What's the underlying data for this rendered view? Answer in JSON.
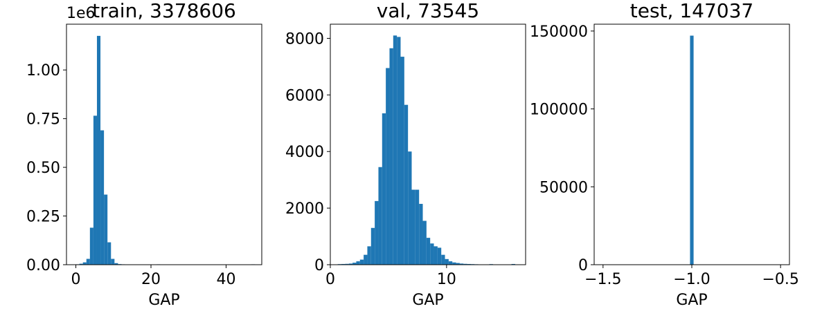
{
  "chart_data": [
    {
      "type": "histogram",
      "title": "train, 3378606",
      "xlabel": "GAP",
      "ylabel": "",
      "xlim": [
        -2.5,
        49.5
      ],
      "ylim": [
        0,
        1235000
      ],
      "xticks": [
        0,
        20,
        40
      ],
      "xtick_labels": [
        "0",
        "20",
        "40"
      ],
      "yticks": [
        0,
        250000,
        500000,
        750000,
        1000000
      ],
      "ytick_labels": [
        "0.00",
        "0.25",
        "0.50",
        "0.75",
        "1.00"
      ],
      "y_offset_label": "1e6",
      "color": "#1f77b4",
      "bin_width": 0.935,
      "bins": [
        {
          "x": 0.0,
          "count": 2000
        },
        {
          "x": 0.935,
          "count": 5000
        },
        {
          "x": 1.87,
          "count": 12000
        },
        {
          "x": 2.805,
          "count": 30000
        },
        {
          "x": 3.74,
          "count": 190000
        },
        {
          "x": 4.675,
          "count": 765000
        },
        {
          "x": 5.61,
          "count": 1175000
        },
        {
          "x": 6.545,
          "count": 690000
        },
        {
          "x": 7.48,
          "count": 360000
        },
        {
          "x": 8.415,
          "count": 115000
        },
        {
          "x": 9.35,
          "count": 30000
        },
        {
          "x": 10.285,
          "count": 8000
        },
        {
          "x": 11.22,
          "count": 3000
        },
        {
          "x": 12.155,
          "count": 2000
        },
        {
          "x": 13.09,
          "count": 1500
        },
        {
          "x": 14.025,
          "count": 1000
        },
        {
          "x": 16.83,
          "count": 1000
        },
        {
          "x": 21.505,
          "count": 2000
        },
        {
          "x": 46.75,
          "count": 2000
        }
      ]
    },
    {
      "type": "histogram",
      "title": "val, 73545",
      "xlabel": "GAP",
      "ylabel": "",
      "xlim": [
        0,
        16.8
      ],
      "ylim": [
        0,
        8500
      ],
      "xticks": [
        0,
        10
      ],
      "xtick_labels": [
        "0",
        "10"
      ],
      "yticks": [
        0,
        2000,
        4000,
        6000,
        8000
      ],
      "ytick_labels": [
        "0",
        "2000",
        "4000",
        "6000",
        "8000"
      ],
      "color": "#1f77b4",
      "bin_width": 0.318,
      "bins": [
        {
          "x": 0.64,
          "count": 20
        },
        {
          "x": 0.958,
          "count": 25
        },
        {
          "x": 1.276,
          "count": 30
        },
        {
          "x": 1.594,
          "count": 40
        },
        {
          "x": 1.912,
          "count": 70
        },
        {
          "x": 2.23,
          "count": 120
        },
        {
          "x": 2.548,
          "count": 180
        },
        {
          "x": 2.866,
          "count": 350
        },
        {
          "x": 3.184,
          "count": 650
        },
        {
          "x": 3.502,
          "count": 1300
        },
        {
          "x": 3.82,
          "count": 2250
        },
        {
          "x": 4.138,
          "count": 3450
        },
        {
          "x": 4.456,
          "count": 5350
        },
        {
          "x": 4.774,
          "count": 6950
        },
        {
          "x": 5.092,
          "count": 7650
        },
        {
          "x": 5.41,
          "count": 8100
        },
        {
          "x": 5.728,
          "count": 8050
        },
        {
          "x": 6.046,
          "count": 7350
        },
        {
          "x": 6.364,
          "count": 5650
        },
        {
          "x": 6.682,
          "count": 4000
        },
        {
          "x": 7.0,
          "count": 2650
        },
        {
          "x": 7.318,
          "count": 2650
        },
        {
          "x": 7.636,
          "count": 2150
        },
        {
          "x": 7.954,
          "count": 1550
        },
        {
          "x": 8.272,
          "count": 950
        },
        {
          "x": 8.59,
          "count": 750
        },
        {
          "x": 8.908,
          "count": 650
        },
        {
          "x": 9.226,
          "count": 600
        },
        {
          "x": 9.544,
          "count": 350
        },
        {
          "x": 9.862,
          "count": 200
        },
        {
          "x": 10.18,
          "count": 120
        },
        {
          "x": 10.498,
          "count": 80
        },
        {
          "x": 10.816,
          "count": 60
        },
        {
          "x": 11.134,
          "count": 40
        },
        {
          "x": 11.452,
          "count": 30
        },
        {
          "x": 11.77,
          "count": 25
        },
        {
          "x": 12.088,
          "count": 20
        },
        {
          "x": 12.406,
          "count": 15
        },
        {
          "x": 13.678,
          "count": 20
        },
        {
          "x": 15.586,
          "count": 25
        }
      ]
    },
    {
      "type": "histogram",
      "title": "test, 147037",
      "xlabel": "GAP",
      "ylabel": "",
      "xlim": [
        -1.55,
        -0.45
      ],
      "ylim": [
        0,
        154389
      ],
      "xticks": [
        -1.5,
        -1.0,
        -0.5
      ],
      "xtick_labels": [
        "−1.5",
        "−1.0",
        "−0.5"
      ],
      "yticks": [
        0,
        50000,
        100000,
        150000
      ],
      "ytick_labels": [
        "0",
        "50000",
        "100000",
        "150000"
      ],
      "color": "#1f77b4",
      "bin_width": 0.02,
      "bins": [
        {
          "x": -1.01,
          "count": 147037
        }
      ]
    }
  ]
}
